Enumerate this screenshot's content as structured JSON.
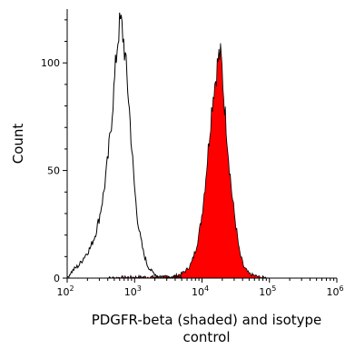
{
  "chart_data": {
    "type": "area",
    "title": "",
    "xlabel_lines": [
      "PDGFR-beta (shaded) and isotype",
      "control"
    ],
    "ylabel": "Count",
    "x_scale": "log",
    "xlim": [
      100,
      1000000
    ],
    "ylim": [
      0,
      125
    ],
    "x_ticks": [
      {
        "value": 100,
        "base": "10",
        "exp": "2"
      },
      {
        "value": 1000,
        "base": "10",
        "exp": "3"
      },
      {
        "value": 10000,
        "base": "10",
        "exp": "4"
      },
      {
        "value": 100000,
        "base": "10",
        "exp": "5"
      },
      {
        "value": 1000000,
        "base": "10",
        "exp": "6"
      }
    ],
    "y_ticks": [
      {
        "value": 0,
        "label": "0"
      },
      {
        "value": 50,
        "label": "50"
      },
      {
        "value": 100,
        "label": "100"
      }
    ],
    "grid": false,
    "legend": "none",
    "series": [
      {
        "role": "isotype control",
        "style": "outline",
        "color": "#000000",
        "points": [
          [
            100,
            0
          ],
          [
            110,
            2
          ],
          [
            125,
            4
          ],
          [
            150,
            6
          ],
          [
            180,
            10
          ],
          [
            220,
            14
          ],
          [
            260,
            20
          ],
          [
            300,
            28
          ],
          [
            350,
            40
          ],
          [
            400,
            55
          ],
          [
            450,
            72
          ],
          [
            500,
            90
          ],
          [
            540,
            105
          ],
          [
            580,
            115
          ],
          [
            620,
            119
          ],
          [
            650,
            116
          ],
          [
            700,
            108
          ],
          [
            760,
            95
          ],
          [
            830,
            80
          ],
          [
            900,
            62
          ],
          [
            980,
            45
          ],
          [
            1080,
            30
          ],
          [
            1200,
            20
          ],
          [
            1350,
            12
          ],
          [
            1550,
            6
          ],
          [
            1800,
            3
          ],
          [
            2200,
            1
          ],
          [
            3000,
            0.5
          ],
          [
            5000,
            0
          ]
        ]
      },
      {
        "role": "PDGFR-beta",
        "style": "filled",
        "color": "#ff0000",
        "points": [
          [
            350,
            0
          ],
          [
            1000,
            0.5
          ],
          [
            3000,
            0.5
          ],
          [
            4000,
            1
          ],
          [
            5000,
            2
          ],
          [
            6000,
            4
          ],
          [
            7000,
            7
          ],
          [
            8000,
            13
          ],
          [
            9000,
            20
          ],
          [
            10000,
            30
          ],
          [
            11000,
            42
          ],
          [
            12000,
            55
          ],
          [
            13000,
            68
          ],
          [
            14000,
            80
          ],
          [
            15000,
            88
          ],
          [
            16000,
            93
          ],
          [
            17000,
            100
          ],
          [
            18000,
            104
          ],
          [
            19000,
            103
          ],
          [
            20000,
            96
          ],
          [
            21000,
            85
          ],
          [
            23000,
            70
          ],
          [
            25000,
            55
          ],
          [
            28000,
            38
          ],
          [
            32000,
            24
          ],
          [
            36000,
            12
          ],
          [
            42000,
            5
          ],
          [
            50000,
            2
          ],
          [
            70000,
            0.5
          ],
          [
            100000,
            0
          ]
        ]
      }
    ]
  }
}
